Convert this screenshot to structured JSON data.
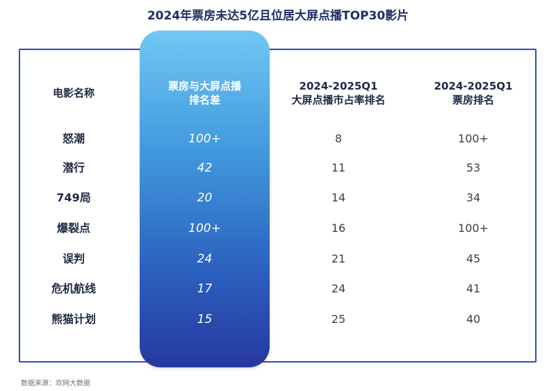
{
  "title": "2024年票房未达5亿且位居大屏点播TOP30影片",
  "source": "数据来源：欢网大数据",
  "headers": {
    "name": "电影名称",
    "diff_line1": "票房与大屏点播",
    "diff_line2": "排名差",
    "share_line1": "2024-2025Q1",
    "share_line2": "大屏点播市占率排名",
    "box_line1": "2024-2025Q1",
    "box_line2": "票房排名"
  },
  "chart_data": {
    "type": "table",
    "columns": [
      "电影名称",
      "票房与大屏点播排名差",
      "2024-2025Q1大屏点播市占率排名",
      "2024-2025Q1票房排名"
    ],
    "rows": [
      {
        "name": "怒潮",
        "diff": "100+",
        "share_rank": "8",
        "box_rank": "100+"
      },
      {
        "name": "潜行",
        "diff": "42",
        "share_rank": "11",
        "box_rank": "53"
      },
      {
        "name": "749局",
        "diff": "20",
        "share_rank": "14",
        "box_rank": "34"
      },
      {
        "name": "爆裂点",
        "diff": "100+",
        "share_rank": "16",
        "box_rank": "100+"
      },
      {
        "name": "误判",
        "diff": "24",
        "share_rank": "21",
        "box_rank": "45"
      },
      {
        "name": "危机航线",
        "diff": "17",
        "share_rank": "24",
        "box_rank": "41"
      },
      {
        "name": "熊猫计划",
        "diff": "15",
        "share_rank": "25",
        "box_rank": "40"
      }
    ]
  }
}
